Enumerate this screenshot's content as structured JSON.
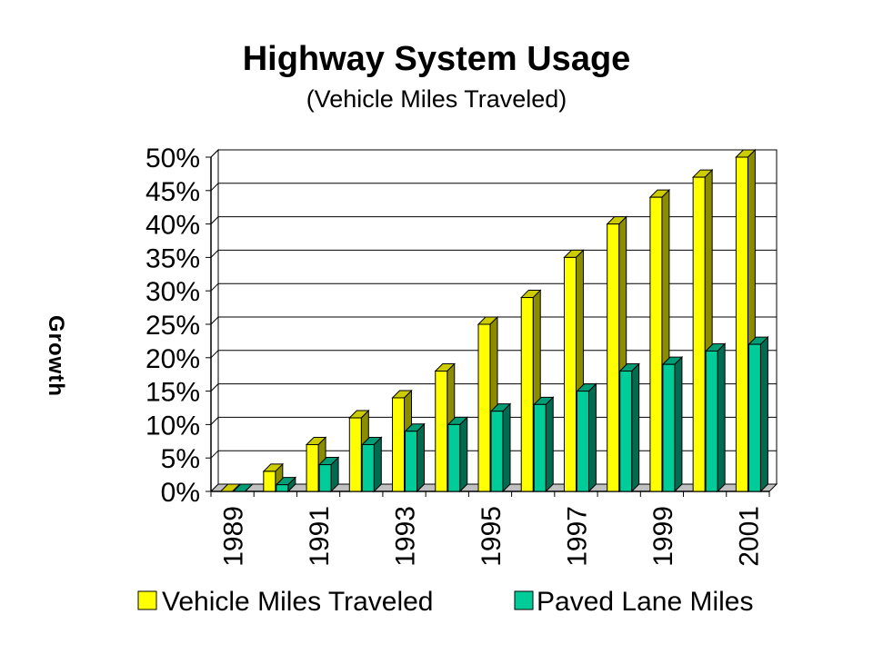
{
  "chart_data": {
    "type": "bar",
    "title": "Highway System Usage",
    "subtitle": "(Vehicle Miles Traveled)",
    "ylabel": "Growth",
    "xlabel": "",
    "ylim": [
      0,
      50
    ],
    "y_ticks": [
      "0%",
      "5%",
      "10%",
      "15%",
      "20%",
      "25%",
      "30%",
      "35%",
      "40%",
      "45%",
      "50%"
    ],
    "categories": [
      "1989",
      "1990",
      "1991",
      "1992",
      "1993",
      "1994",
      "1995",
      "1996",
      "1997",
      "1998",
      "1999",
      "2000",
      "2001"
    ],
    "x_tick_labels": [
      "1989",
      "",
      "1991",
      "",
      "1993",
      "",
      "1995",
      "",
      "1997",
      "",
      "1999",
      "",
      "2001"
    ],
    "series": [
      {
        "name": "Vehicle Miles Traveled",
        "values": [
          0,
          3,
          7,
          11,
          14,
          18,
          25,
          29,
          35,
          40,
          44,
          47,
          50
        ]
      },
      {
        "name": "Paved Lane Miles",
        "values": [
          0,
          1,
          4,
          7,
          9,
          10,
          12,
          13,
          15,
          18,
          19,
          21,
          22
        ]
      }
    ],
    "colors": {
      "Vehicle Miles Traveled": {
        "front": "#ffff00",
        "side": "#8c8c00",
        "top": "#cccc00"
      },
      "Paved Lane Miles": {
        "front": "#00cc99",
        "side": "#006b50",
        "top": "#009c75"
      }
    },
    "grid": true,
    "legend": "bottom"
  }
}
